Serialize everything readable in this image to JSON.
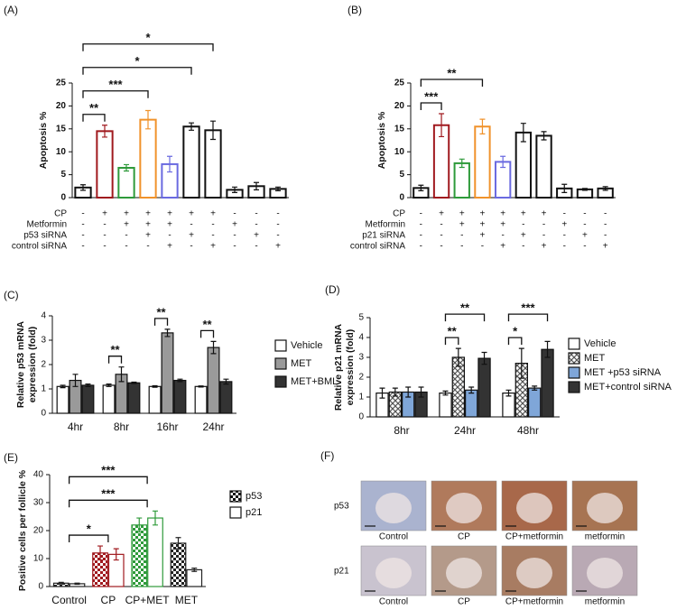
{
  "chart_data": [
    {
      "type": "bar",
      "panel": "(A)",
      "ylabel": [
        "Apoptosis %"
      ],
      "ylim": [
        0,
        25
      ],
      "yticks": [
        0,
        5,
        10,
        15,
        20,
        25
      ],
      "categories": [
        null,
        null,
        null,
        null,
        null,
        null,
        null,
        null,
        null,
        null
      ],
      "values": [
        2.2,
        14.5,
        6.5,
        17,
        7.3,
        15.5,
        14.7,
        1.7,
        2.5,
        1.9
      ],
      "errors": [
        0.6,
        1.3,
        0.7,
        2.0,
        1.7,
        0.8,
        2.0,
        0.6,
        0.8,
        0.4
      ],
      "bar_fill": "#ffffff",
      "colors": [
        "#111111",
        "#a0191e",
        "#2e9a3a",
        "#f0922b",
        "#6a6ae0",
        "#111111",
        "#111111",
        "#111111",
        "#111111",
        "#111111"
      ],
      "conditions": [
        {
          "label": "CP",
          "signs": [
            "-",
            "+",
            "+",
            "+",
            "+",
            "+",
            "+",
            "-",
            "-",
            "-"
          ]
        },
        {
          "label": "Metformin",
          "signs": [
            "-",
            "-",
            "+",
            "+",
            "+",
            "-",
            "-",
            "+",
            "-",
            "-"
          ]
        },
        {
          "label": "p53 siRNA",
          "signs": [
            "-",
            "-",
            "-",
            "+",
            "-",
            "+",
            "-",
            "-",
            "+",
            "-"
          ]
        },
        {
          "label": "control siRNA",
          "signs": [
            "-",
            "-",
            "-",
            "-",
            "+",
            "-",
            "+",
            "-",
            "-",
            "+"
          ]
        }
      ],
      "brackets": [
        {
          "label": "**",
          "between": [
            0,
            1
          ]
        },
        {
          "label": "***",
          "between": [
            0,
            3
          ]
        },
        {
          "label": "*",
          "between": [
            0,
            5
          ]
        },
        {
          "label": "*",
          "between": [
            0,
            6
          ]
        }
      ]
    },
    {
      "type": "bar",
      "panel": "(B)",
      "ylabel": [
        "Apoptosis %"
      ],
      "ylim": [
        0,
        25
      ],
      "yticks": [
        0,
        5,
        10,
        15,
        20,
        25
      ],
      "categories": [
        null,
        null,
        null,
        null,
        null,
        null,
        null,
        null,
        null,
        null
      ],
      "values": [
        2.1,
        15.8,
        7.5,
        15.5,
        7.8,
        14.2,
        13.5,
        2.0,
        1.8,
        2.0
      ],
      "errors": [
        0.6,
        2.5,
        0.9,
        1.6,
        1.2,
        2.0,
        0.9,
        0.9,
        0.2,
        0.4
      ],
      "bar_fill": "#ffffff",
      "colors": [
        "#111111",
        "#a0191e",
        "#2e9a3a",
        "#f0922b",
        "#6a6ae0",
        "#111111",
        "#111111",
        "#111111",
        "#111111",
        "#111111"
      ],
      "conditions": [
        {
          "label": "CP",
          "signs": [
            "-",
            "+",
            "+",
            "+",
            "+",
            "+",
            "+",
            "-",
            "-",
            "-"
          ]
        },
        {
          "label": "Metformin",
          "signs": [
            "-",
            "-",
            "+",
            "+",
            "+",
            "-",
            "-",
            "+",
            "-",
            "-"
          ]
        },
        {
          "label": "p21 siRNA",
          "signs": [
            "-",
            "-",
            "-",
            "+",
            "-",
            "+",
            "-",
            "-",
            "+",
            "-"
          ]
        },
        {
          "label": "control siRNA",
          "signs": [
            "-",
            "-",
            "-",
            "-",
            "+",
            "-",
            "+",
            "-",
            "-",
            "+"
          ]
        }
      ],
      "brackets": [
        {
          "label": "***",
          "between": [
            0,
            1
          ]
        },
        {
          "label": "**",
          "between": [
            0,
            3
          ]
        }
      ]
    },
    {
      "type": "bar",
      "panel": "(C)",
      "ylabel": [
        "Relative p53 mRNA",
        "expression (fold)"
      ],
      "ylim": [
        0,
        4
      ],
      "yticks": [
        0,
        1,
        2,
        3,
        4
      ],
      "categories": [
        "4hr",
        "8hr",
        "16hr",
        "24hr"
      ],
      "series": [
        {
          "name": "Vehicle",
          "color": "#ffffff",
          "values": [
            1.1,
            1.15,
            1.1,
            1.1
          ],
          "errors": [
            0.05,
            0.05,
            0.03,
            0.02
          ]
        },
        {
          "name": "MET",
          "color": "#9a9a9a",
          "values": [
            1.35,
            1.6,
            3.3,
            2.7
          ],
          "errors": [
            0.25,
            0.3,
            0.15,
            0.25
          ]
        },
        {
          "name": "MET+BML",
          "color": "#333333",
          "values": [
            1.15,
            1.25,
            1.35,
            1.3
          ],
          "errors": [
            0.05,
            0.03,
            0.05,
            0.1
          ]
        }
      ],
      "brackets": [
        {
          "label": "**",
          "between": [
            [
              1,
              0
            ],
            [
              1,
              1
            ]
          ]
        },
        {
          "label": "**",
          "between": [
            [
              2,
              0
            ],
            [
              2,
              1
            ]
          ]
        },
        {
          "label": "**",
          "between": [
            [
              3,
              0
            ],
            [
              3,
              1
            ]
          ]
        }
      ]
    },
    {
      "type": "bar",
      "panel": "(D)",
      "ylabel": [
        "Relative p21 mRNA",
        "expression (fold)"
      ],
      "ylim": [
        0,
        5
      ],
      "yticks": [
        0,
        1,
        2,
        3,
        4,
        5
      ],
      "categories": [
        "8hr",
        "24hr",
        "48hr"
      ],
      "series": [
        {
          "name": "Vehicle",
          "color": "#ffffff",
          "values": [
            1.2,
            1.2,
            1.2
          ],
          "errors": [
            0.25,
            0.1,
            0.15
          ]
        },
        {
          "name": "MET",
          "color": "#555555",
          "pattern": "hatch",
          "values": [
            1.25,
            3.0,
            2.7
          ],
          "errors": [
            0.2,
            0.45,
            0.75
          ]
        },
        {
          "name": "MET +p53 siRNA",
          "color": "#7fa6d8",
          "values": [
            1.25,
            1.35,
            1.45
          ],
          "errors": [
            0.25,
            0.15,
            0.1
          ]
        },
        {
          "name": "MET+control siRNA",
          "color": "#333333",
          "values": [
            1.25,
            2.95,
            3.4
          ],
          "errors": [
            0.25,
            0.3,
            0.4
          ]
        }
      ],
      "brackets": [
        {
          "label": "**",
          "between": [
            [
              1,
              0
            ],
            [
              1,
              1
            ]
          ]
        },
        {
          "label": "**",
          "between": [
            [
              1,
              0
            ],
            [
              1,
              3
            ]
          ]
        },
        {
          "label": "*",
          "between": [
            [
              2,
              0
            ],
            [
              2,
              1
            ]
          ]
        },
        {
          "label": "***",
          "between": [
            [
              2,
              0
            ],
            [
              2,
              3
            ]
          ]
        }
      ]
    },
    {
      "type": "bar",
      "panel": "(E)",
      "ylabel": [
        "Positive cells per follicle %"
      ],
      "ylim": [
        0,
        40
      ],
      "yticks": [
        0,
        10,
        20,
        30,
        40
      ],
      "categories": [
        "Control",
        "CP",
        "CP+MET",
        "MET"
      ],
      "category_colors": [
        "#222222",
        "#a0191e",
        "#2e9a3a",
        "#222222"
      ],
      "series": [
        {
          "name": "p53",
          "color": "#111111",
          "pattern": "check",
          "values": [
            1.2,
            12,
            22,
            15.5
          ],
          "errors": [
            0.3,
            2.5,
            2.5,
            2
          ]
        },
        {
          "name": "p21",
          "color": "#ffffff",
          "values": [
            1,
            11.5,
            24.5,
            6
          ],
          "errors": [
            0.2,
            2,
            2.5,
            0.6
          ]
        }
      ],
      "brackets": [
        {
          "label": "*",
          "between": [
            0,
            1
          ]
        },
        {
          "label": "***",
          "between": [
            0,
            2
          ]
        },
        {
          "label": "***",
          "between": [
            0,
            2
          ]
        }
      ]
    }
  ],
  "micrographs": {
    "panel": "(F)",
    "rows": [
      "p53",
      "p21"
    ],
    "columns": [
      "Control",
      "CP",
      "CP+metformin",
      "metformin"
    ]
  }
}
